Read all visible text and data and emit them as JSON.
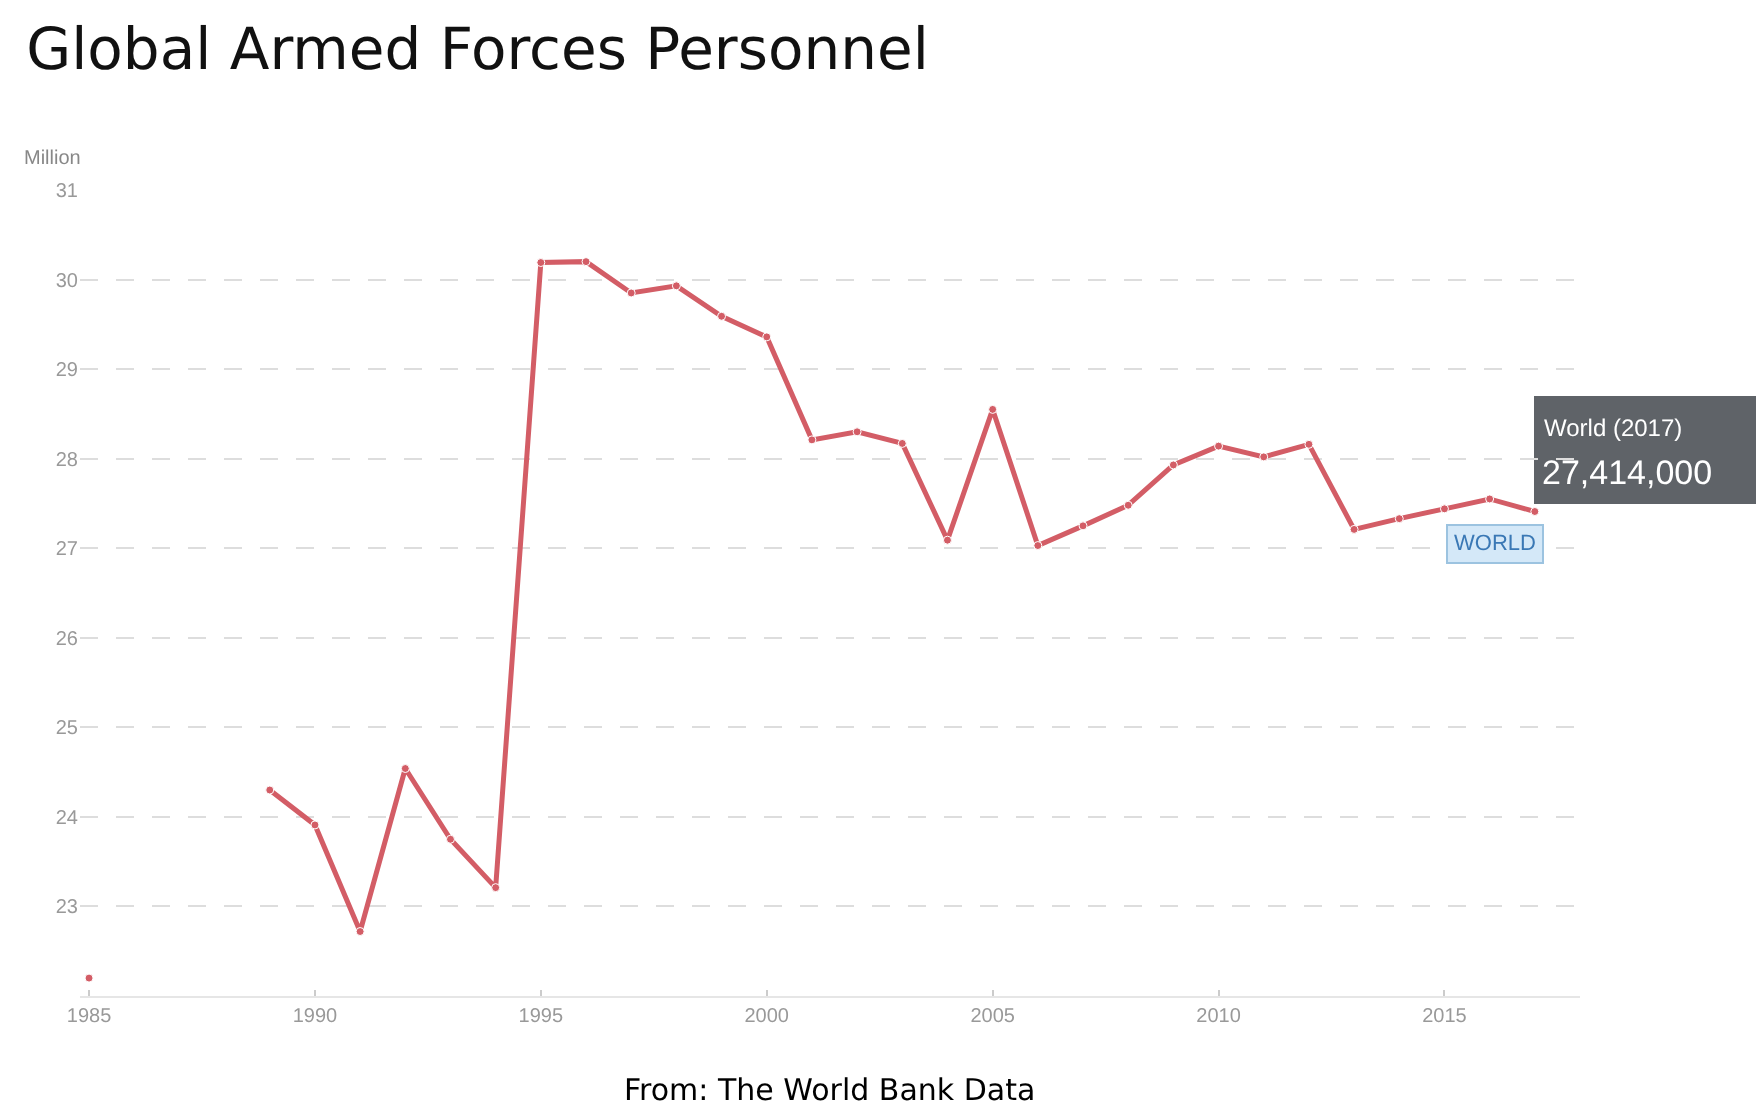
{
  "chart_data": {
    "type": "line",
    "title": "Global Armed Forces Personnel",
    "ylabel": "Million",
    "x": [
      1985,
      1986,
      1987,
      1988,
      1989,
      1990,
      1991,
      1992,
      1993,
      1994,
      1995,
      1996,
      1997,
      1998,
      1999,
      2000,
      2001,
      2002,
      2003,
      2004,
      2005,
      2006,
      2007,
      2008,
      2009,
      2010,
      2011,
      2012,
      2013,
      2014,
      2015,
      2016,
      2017
    ],
    "series": [
      {
        "name": "WORLD",
        "color": "#d35d66",
        "values": [
          22.2,
          null,
          null,
          null,
          24.3,
          23.91,
          22.72,
          24.54,
          23.75,
          23.21,
          30.19,
          30.2,
          29.85,
          29.93,
          29.59,
          29.36,
          28.21,
          28.3,
          28.17,
          27.09,
          28.55,
          27.03,
          27.25,
          27.48,
          27.93,
          28.14,
          28.02,
          28.16,
          27.21,
          27.33,
          27.44,
          27.55,
          27.41
        ]
      }
    ],
    "xlim": [
      1984.8,
      2018
    ],
    "xticks": [
      1985,
      1990,
      1995,
      2000,
      2005,
      2010,
      2015
    ],
    "ylim": [
      22.0,
      31
    ],
    "yticks": [
      23,
      24,
      25,
      26,
      27,
      28,
      29,
      30,
      31
    ],
    "grid": "y",
    "marker": "circle",
    "line_style": "solid",
    "legend": false,
    "annotations": [
      {
        "text": "World (2017)",
        "x": 2017,
        "y": 27.41
      },
      {
        "text": "27,414,000",
        "x": 2017,
        "y": 27.41
      },
      "From: The World Bank Data"
    ]
  }
}
